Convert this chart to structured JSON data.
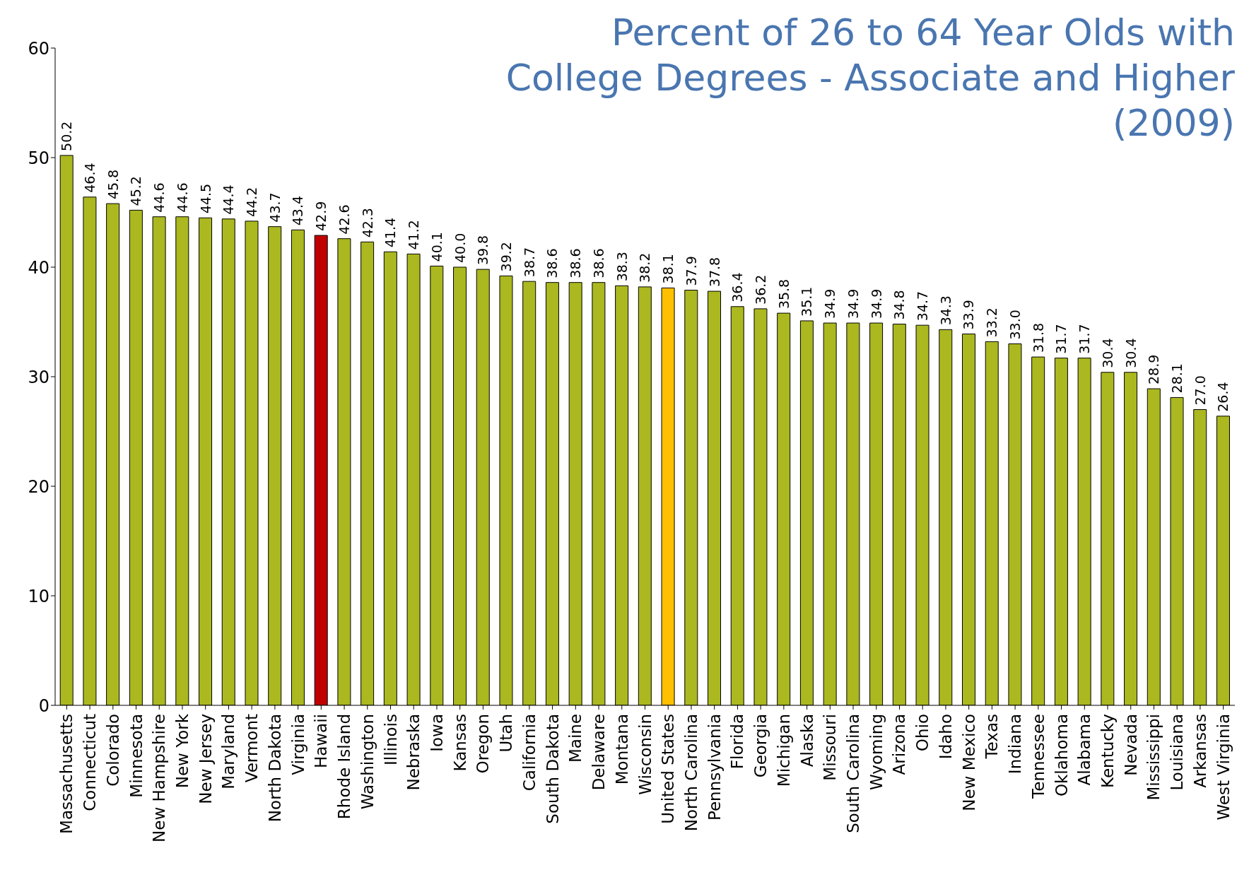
{
  "chart_data": {
    "type": "bar",
    "title": "Percent of 26 to 64 Year Olds with College Degrees - Associate and Higher (2009)",
    "categories": [
      "Massachusetts",
      "Connecticut",
      "Colorado",
      "Minnesota",
      "New Hampshire",
      "New York",
      "New Jersey",
      "Maryland",
      "Vermont",
      "North Dakota",
      "Virginia",
      "Hawaii",
      "Rhode Island",
      "Washington",
      "Illinois",
      "Nebraska",
      "Iowa",
      "Kansas",
      "Oregon",
      "Utah",
      "California",
      "South Dakota",
      "Maine",
      "Delaware",
      "Montana",
      "Wisconsin",
      "United States",
      "North Carolina",
      "Pennsylvania",
      "Florida",
      "Georgia",
      "Michigan",
      "Alaska",
      "Missouri",
      "South Carolina",
      "Wyoming",
      "Arizona",
      "Ohio",
      "Idaho",
      "New Mexico",
      "Texas",
      "Indiana",
      "Tennessee",
      "Oklahoma",
      "Alabama",
      "Kentucky",
      "Nevada",
      "Mississippi",
      "Louisiana",
      "Arkansas",
      "West Virginia"
    ],
    "values": [
      50.2,
      46.4,
      45.8,
      45.2,
      44.6,
      44.6,
      44.5,
      44.4,
      44.2,
      43.7,
      43.4,
      42.9,
      42.6,
      42.3,
      41.4,
      41.2,
      40.1,
      40.0,
      39.8,
      39.2,
      38.7,
      38.6,
      38.6,
      38.6,
      38.3,
      38.2,
      38.1,
      37.9,
      37.8,
      36.4,
      36.2,
      35.8,
      35.1,
      34.9,
      34.9,
      34.9,
      34.8,
      34.7,
      34.3,
      33.9,
      33.2,
      33.0,
      31.8,
      31.7,
      31.7,
      30.4,
      30.4,
      28.9,
      28.1,
      27.0,
      26.4
    ],
    "value_labels": [
      "50.2",
      "46.4",
      "45.8",
      "45.2",
      "44.6",
      "44.6",
      "44.5",
      "44.4",
      "44.2",
      "43.7",
      "43.4",
      "42.9",
      "42.6",
      "42.3",
      "41.4",
      "41.2",
      "40.1",
      "40.0",
      "39.8",
      "39.2",
      "38.7",
      "38.6",
      "38.6",
      "38.6",
      "38.3",
      "38.2",
      "38.1",
      "37.9",
      "37.8",
      "36.4",
      "36.2",
      "35.8",
      "35.1",
      "34.9",
      "34.9",
      "34.9",
      "34.8",
      "34.7",
      "34.3",
      "33.9",
      "33.2",
      "33.0",
      "31.8",
      "31.7",
      "31.7",
      "30.4",
      "30.4",
      "28.9",
      "28.1",
      "27.0",
      "26.4"
    ],
    "colors": [
      "#abb81f",
      "#abb81f",
      "#abb81f",
      "#abb81f",
      "#abb81f",
      "#abb81f",
      "#abb81f",
      "#abb81f",
      "#abb81f",
      "#abb81f",
      "#abb81f",
      "#c00000",
      "#abb81f",
      "#abb81f",
      "#abb81f",
      "#abb81f",
      "#abb81f",
      "#abb81f",
      "#abb81f",
      "#abb81f",
      "#abb81f",
      "#abb81f",
      "#abb81f",
      "#abb81f",
      "#abb81f",
      "#abb81f",
      "#ffc000",
      "#abb81f",
      "#abb81f",
      "#abb81f",
      "#abb81f",
      "#abb81f",
      "#abb81f",
      "#abb81f",
      "#abb81f",
      "#abb81f",
      "#abb81f",
      "#abb81f",
      "#abb81f",
      "#abb81f",
      "#abb81f",
      "#abb81f",
      "#abb81f",
      "#abb81f",
      "#abb81f",
      "#abb81f",
      "#abb81f",
      "#abb81f",
      "#abb81f",
      "#abb81f",
      "#abb81f"
    ],
    "ylim": [
      0,
      60
    ],
    "yticks": [
      0,
      10,
      20,
      30,
      40,
      50,
      60
    ]
  }
}
